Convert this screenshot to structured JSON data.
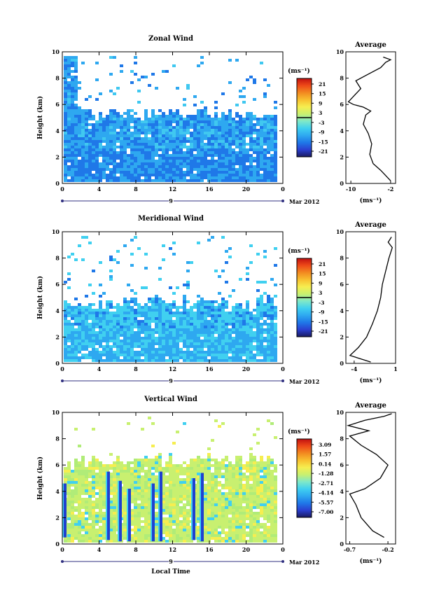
{
  "colors": {
    "colorbar": [
      "#1a1a60",
      "#2a3fd0",
      "#1f78e8",
      "#2ea8f0",
      "#40d0f0",
      "#7fe8c8",
      "#c8f070",
      "#f6ee50",
      "#f8c030",
      "#f28a20",
      "#ee4a18",
      "#c01010"
    ],
    "zonal_field": [
      "#1f78e8",
      "#2ea8f0",
      "#40c8f0",
      "#7fe0e0",
      "#4060e0"
    ],
    "meridional_field": [
      "#2ea8f0",
      "#40d0f0",
      "#1f78e8",
      "#7fe8c8"
    ],
    "vertical_field": [
      "#c8f070",
      "#b0ec78",
      "#f6ee50",
      "#40d0f0",
      "#2ea8f0",
      "#1f40d0"
    ]
  },
  "colorbar_unit": "(ms⁻¹)",
  "date_label": "Mar 2012",
  "chart_data": [
    {
      "id": "zonal",
      "type": "heatmap",
      "title": "Zonal Wind",
      "ylabel": "Height (km)",
      "xlabel": "",
      "ylim": [
        0,
        10
      ],
      "xlim": [
        0,
        24
      ],
      "xticks": [
        "0",
        "4",
        "8",
        "12",
        "16",
        "20",
        "0"
      ],
      "yticks": [
        "0",
        "2",
        "4",
        "6",
        "8",
        "10"
      ],
      "day_label": "9",
      "colorbar_ticks": [
        "21",
        "15",
        "9",
        "3",
        "-3",
        "-9",
        "-15",
        "-21"
      ],
      "colorbar_range": [
        -24,
        24
      ],
      "zero_line": 0,
      "profile": {
        "title": "Average",
        "xlabel": "(ms⁻¹)",
        "xticks": [
          "-10",
          "-2"
        ],
        "yticks": [
          "0",
          "2",
          "4",
          "6",
          "8",
          "10"
        ],
        "xlim": [
          -11,
          -1
        ],
        "points": [
          [
            -2.0,
            0.2
          ],
          [
            -3.0,
            0.6
          ],
          [
            -4.0,
            1.0
          ],
          [
            -5.5,
            1.5
          ],
          [
            -6.2,
            2.2
          ],
          [
            -5.8,
            3.0
          ],
          [
            -6.5,
            3.8
          ],
          [
            -7.5,
            4.5
          ],
          [
            -7.0,
            5.2
          ],
          [
            -6.0,
            5.5
          ],
          [
            -7.5,
            5.8
          ],
          [
            -9.5,
            6.0
          ],
          [
            -10.5,
            6.2
          ],
          [
            -9.5,
            6.6
          ],
          [
            -8.0,
            7.2
          ],
          [
            -9.0,
            7.8
          ],
          [
            -6.0,
            8.4
          ],
          [
            -4.0,
            8.8
          ],
          [
            -3.0,
            9.2
          ],
          [
            -2.0,
            9.4
          ],
          [
            -3.5,
            9.6
          ]
        ]
      }
    },
    {
      "id": "meridional",
      "type": "heatmap",
      "title": "Meridional Wind",
      "ylabel": "Height (km)",
      "xlabel": "",
      "ylim": [
        0,
        10
      ],
      "xlim": [
        0,
        24
      ],
      "xticks": [
        "0",
        "4",
        "8",
        "12",
        "16",
        "20",
        "0"
      ],
      "yticks": [
        "0",
        "2",
        "4",
        "6",
        "8",
        "10"
      ],
      "day_label": "9",
      "colorbar_ticks": [
        "21",
        "15",
        "9",
        "3",
        "-3",
        "-9",
        "-15",
        "-21"
      ],
      "colorbar_range": [
        -24,
        24
      ],
      "zero_line": 0,
      "profile": {
        "title": "Average",
        "xlabel": "(ms⁻¹)",
        "xticks": [
          "-4",
          "1"
        ],
        "yticks": [
          "0",
          "2",
          "4",
          "6",
          "8",
          "10"
        ],
        "xlim": [
          -5,
          1
        ],
        "points": [
          [
            -2.0,
            0.1
          ],
          [
            -4.5,
            0.6
          ],
          [
            -3.5,
            1.2
          ],
          [
            -2.5,
            2.0
          ],
          [
            -1.8,
            3.0
          ],
          [
            -1.2,
            4.0
          ],
          [
            -0.8,
            5.0
          ],
          [
            -0.6,
            6.0
          ],
          [
            -0.2,
            7.0
          ],
          [
            0.2,
            8.0
          ],
          [
            0.6,
            8.8
          ],
          [
            0.1,
            9.2
          ],
          [
            0.5,
            9.6
          ]
        ]
      }
    },
    {
      "id": "vertical",
      "type": "heatmap",
      "title": "Vertical Wind",
      "ylabel": "Height (km)",
      "xlabel": "Local Time",
      "ylim": [
        0,
        10
      ],
      "xlim": [
        0,
        24
      ],
      "xticks": [
        "0",
        "4",
        "8",
        "12",
        "16",
        "20",
        "0"
      ],
      "yticks": [
        "0",
        "2",
        "4",
        "6",
        "8",
        "10"
      ],
      "day_label": "9",
      "colorbar_ticks": [
        "3.09",
        "1.57",
        "0.14",
        "-1.28",
        "-2.71",
        "-4.14",
        "-5.57",
        "-7.00"
      ],
      "colorbar_range": [
        -7.7,
        3.8
      ],
      "zero_line": null,
      "profile": {
        "title": "Average",
        "xlabel": "(ms⁻¹)",
        "xticks": [
          "-0.7",
          "-0.2"
        ],
        "yticks": [
          "0",
          "2",
          "4",
          "6",
          "8",
          "10"
        ],
        "xlim": [
          -0.75,
          -0.1
        ],
        "points": [
          [
            -0.25,
            0.5
          ],
          [
            -0.4,
            1.0
          ],
          [
            -0.55,
            2.0
          ],
          [
            -0.62,
            3.0
          ],
          [
            -0.7,
            3.8
          ],
          [
            -0.5,
            4.2
          ],
          [
            -0.3,
            5.0
          ],
          [
            -0.2,
            6.0
          ],
          [
            -0.35,
            6.8
          ],
          [
            -0.55,
            7.5
          ],
          [
            -0.7,
            8.2
          ],
          [
            -0.45,
            8.6
          ],
          [
            -0.72,
            9.0
          ],
          [
            -0.5,
            9.4
          ],
          [
            -0.25,
            9.7
          ],
          [
            -0.15,
            9.9
          ]
        ]
      }
    }
  ]
}
